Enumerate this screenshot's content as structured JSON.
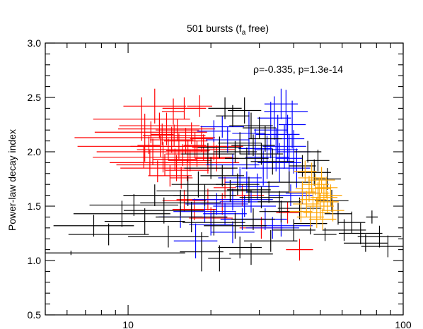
{
  "chart_data": {
    "type": "scatter",
    "title_main": "501 bursts (f",
    "title_sub": "a",
    "title_tail": " free)",
    "ylabel": "Power-law decay index",
    "xlabel": "",
    "annotation": "ρ=-0.335, p=1.3e-14",
    "x_scale": "log",
    "xlim": [
      5,
      100
    ],
    "ylim": [
      0.5,
      3.0
    ],
    "x_tick_labels": [
      "10",
      "100"
    ],
    "y_tick_labels": [
      "0.5",
      "1.0",
      "1.5",
      "2.0",
      "2.5",
      "3.0"
    ],
    "grid": false,
    "series": [
      {
        "color": "#ff0000",
        "points": [
          [
            12.5,
            2.42,
            1.3,
            0.16
          ],
          [
            11.2,
            2.3,
            1.5,
            0.2
          ],
          [
            14.6,
            2.37,
            1.1,
            0.12
          ],
          [
            16.0,
            2.4,
            1.2,
            0.1
          ],
          [
            18.2,
            2.42,
            0.9,
            0.1
          ],
          [
            11.5,
            2.13,
            1.8,
            0.22
          ],
          [
            12.1,
            2.18,
            1.6,
            0.1
          ],
          [
            13.0,
            2.24,
            1.4,
            0.12
          ],
          [
            13.8,
            2.21,
            1.5,
            0.15
          ],
          [
            14.7,
            2.15,
            1.3,
            0.1
          ],
          [
            15.1,
            2.2,
            1.2,
            0.1
          ],
          [
            16.2,
            2.1,
            1.2,
            0.12
          ],
          [
            17.0,
            2.17,
            1.0,
            0.1
          ],
          [
            13.1,
            2.05,
            2.0,
            0.1
          ],
          [
            12.3,
            2.0,
            1.6,
            0.12
          ],
          [
            11.9,
            2.06,
            1.1,
            0.08
          ],
          [
            14.0,
            2.02,
            1.3,
            0.1
          ],
          [
            15.3,
            2.05,
            1.5,
            0.12
          ],
          [
            16.5,
            2.01,
            1.2,
            0.1
          ],
          [
            17.5,
            2.06,
            1.1,
            0.12
          ],
          [
            13.4,
            1.95,
            1.8,
            0.14
          ],
          [
            12.0,
            1.9,
            1.4,
            0.12
          ],
          [
            14.8,
            1.93,
            1.2,
            0.1
          ],
          [
            15.8,
            1.97,
            1.0,
            0.1
          ],
          [
            17.8,
            1.98,
            1.3,
            0.12
          ],
          [
            13.6,
            1.88,
            1.5,
            0.1
          ],
          [
            15.0,
            1.85,
            1.6,
            0.12
          ],
          [
            16.4,
            1.83,
            1.2,
            0.1
          ],
          [
            14.2,
            1.78,
            1.2,
            0.1
          ],
          [
            12.8,
            1.82,
            1.0,
            0.1
          ],
          [
            15.6,
            1.76,
            1.1,
            0.1
          ],
          [
            14.4,
            2.11,
            1.2,
            0.12
          ],
          [
            13.3,
            2.16,
            1.1,
            0.1
          ],
          [
            11.4,
            1.95,
            1.0,
            0.1
          ],
          [
            18.8,
            2.04,
            1.1,
            0.12
          ],
          [
            16.8,
            1.92,
            1.2,
            0.1
          ],
          [
            19.5,
            1.9,
            1.3,
            0.1
          ],
          [
            21.0,
            1.94,
            1.2,
            0.12
          ],
          [
            20.5,
            2.02,
            1.2,
            0.1
          ],
          [
            18.5,
            2.12,
            1.1,
            0.12
          ],
          [
            16.0,
            1.55,
            1.2,
            0.1
          ],
          [
            19.5,
            1.56,
            1.3,
            0.1
          ],
          [
            22.0,
            1.52,
            1.2,
            0.1
          ],
          [
            17.4,
            1.47,
            1.2,
            0.1
          ],
          [
            20.0,
            1.39,
            1.2,
            0.1
          ],
          [
            22.5,
            1.67,
            1.1,
            0.1
          ],
          [
            26.0,
            1.6,
            1.2,
            0.1
          ],
          [
            30.5,
            1.3,
            1.2,
            0.1
          ],
          [
            42.0,
            1.1,
            1.12,
            0.1
          ],
          [
            38.0,
            1.44,
            1.1,
            0.1
          ]
        ]
      },
      {
        "color": "#0000ff",
        "points": [
          [
            36.0,
            2.44,
            1.15,
            0.14
          ],
          [
            37.5,
            2.37,
            1.2,
            0.2
          ],
          [
            34.0,
            2.31,
            1.15,
            0.2
          ],
          [
            33.0,
            2.2,
            1.15,
            0.26
          ],
          [
            35.0,
            2.16,
            1.2,
            0.18
          ],
          [
            38.0,
            2.12,
            1.15,
            0.22
          ],
          [
            39.5,
            2.25,
            1.12,
            0.22
          ],
          [
            37.0,
            2.05,
            1.2,
            0.2
          ],
          [
            34.5,
            2.02,
            1.2,
            0.2
          ],
          [
            32.0,
            1.95,
            1.2,
            0.2
          ],
          [
            35.5,
            1.9,
            1.2,
            0.18
          ],
          [
            38.5,
            1.94,
            1.12,
            0.22
          ],
          [
            40.0,
            2.0,
            1.15,
            0.2
          ],
          [
            41.0,
            1.85,
            1.12,
            0.18
          ],
          [
            31.0,
            1.85,
            1.2,
            0.16
          ],
          [
            29.0,
            2.03,
            1.15,
            0.18
          ],
          [
            27.5,
            2.17,
            1.15,
            0.2
          ],
          [
            22.0,
            2.23,
            1.2,
            0.1
          ],
          [
            20.5,
            2.19,
            1.15,
            0.1
          ],
          [
            23.0,
            2.11,
            1.2,
            0.12
          ],
          [
            24.0,
            1.88,
            1.25,
            0.1
          ],
          [
            25.5,
            1.76,
            1.2,
            0.1
          ],
          [
            27.0,
            1.72,
            1.2,
            0.1
          ],
          [
            29.5,
            1.68,
            1.2,
            0.12
          ],
          [
            24.0,
            1.56,
            1.4,
            0.1
          ],
          [
            21.0,
            1.52,
            1.3,
            0.1
          ],
          [
            26.5,
            1.5,
            1.3,
            0.1
          ],
          [
            28.0,
            1.54,
            1.3,
            0.1
          ],
          [
            19.0,
            1.45,
            1.3,
            0.1
          ],
          [
            22.5,
            1.43,
            1.2,
            0.1
          ],
          [
            31.5,
            1.38,
            1.2,
            0.1
          ],
          [
            33.5,
            1.3,
            1.25,
            0.1
          ],
          [
            36.0,
            1.32,
            1.3,
            0.1
          ],
          [
            17.6,
            1.18,
            1.2,
            0.16
          ],
          [
            20.0,
            1.33,
            1.2,
            0.1
          ],
          [
            24.0,
            1.26,
            1.2,
            0.1
          ],
          [
            39.0,
            1.6,
            1.2,
            0.1
          ],
          [
            43.0,
            1.62,
            1.15,
            0.1
          ],
          [
            15.5,
            1.4,
            1.2,
            0.1
          ],
          [
            26.0,
            1.38,
            1.2,
            0.1
          ]
        ]
      },
      {
        "color": "#000000",
        "points": [
          [
            22.5,
            2.4,
            1.15,
            0.1
          ],
          [
            26.5,
            2.38,
            1.15,
            0.12
          ],
          [
            24.0,
            2.33,
            1.15,
            0.1
          ],
          [
            28.0,
            2.24,
            1.2,
            0.12
          ],
          [
            30.0,
            2.22,
            1.15,
            0.1
          ],
          [
            25.5,
            2.08,
            1.2,
            0.1
          ],
          [
            28.5,
            2.06,
            1.2,
            0.1
          ],
          [
            31.5,
            2.12,
            1.15,
            0.12
          ],
          [
            30.5,
            1.98,
            1.2,
            0.1
          ],
          [
            27.0,
            1.94,
            1.2,
            0.1
          ],
          [
            24.5,
            2.0,
            1.2,
            0.1
          ],
          [
            21.5,
            2.04,
            1.2,
            0.1
          ],
          [
            19.5,
            1.98,
            1.25,
            0.1
          ],
          [
            33.5,
            1.91,
            1.2,
            0.12
          ],
          [
            45.0,
            2.0,
            1.12,
            0.1
          ],
          [
            49.0,
            1.92,
            1.1,
            0.1
          ],
          [
            43.0,
            1.87,
            1.12,
            0.1
          ],
          [
            47.5,
            1.81,
            1.15,
            0.12
          ],
          [
            53.0,
            1.75,
            1.12,
            0.1
          ],
          [
            20.0,
            1.85,
            1.25,
            0.1
          ],
          [
            22.0,
            1.78,
            1.2,
            0.1
          ],
          [
            18.0,
            1.7,
            1.25,
            0.12
          ],
          [
            16.5,
            1.64,
            1.3,
            0.14
          ],
          [
            19.0,
            1.6,
            1.3,
            0.1
          ],
          [
            23.5,
            1.64,
            1.2,
            0.1
          ],
          [
            25.0,
            1.7,
            1.2,
            0.1
          ],
          [
            27.5,
            1.65,
            1.2,
            0.12
          ],
          [
            30.5,
            1.58,
            1.2,
            0.1
          ],
          [
            32.5,
            1.63,
            1.2,
            0.1
          ],
          [
            35.5,
            1.54,
            1.2,
            0.1
          ],
          [
            15.5,
            1.53,
            1.4,
            0.12
          ],
          [
            13.5,
            1.46,
            1.4,
            0.12
          ],
          [
            12.5,
            1.6,
            1.3,
            0.1
          ],
          [
            10.5,
            1.51,
            1.45,
            0.1
          ],
          [
            9.5,
            1.43,
            1.5,
            0.12
          ],
          [
            11.5,
            1.36,
            1.4,
            0.12
          ],
          [
            17.0,
            1.4,
            1.35,
            0.14
          ],
          [
            20.5,
            1.35,
            1.3,
            0.12
          ],
          [
            24.5,
            1.32,
            1.3,
            0.12
          ],
          [
            28.5,
            1.38,
            1.2,
            0.1
          ],
          [
            36.0,
            1.45,
            1.2,
            0.1
          ],
          [
            42.0,
            1.48,
            1.2,
            0.1
          ],
          [
            55.0,
            1.55,
            1.15,
            0.1
          ],
          [
            58.0,
            1.43,
            1.12,
            0.1
          ],
          [
            65.0,
            1.35,
            1.12,
            0.1
          ],
          [
            61.0,
            1.28,
            1.2,
            0.1
          ],
          [
            70.0,
            1.25,
            1.2,
            0.1
          ],
          [
            77.0,
            1.4,
            1.05,
            0.06
          ],
          [
            82.0,
            1.22,
            1.2,
            0.1
          ],
          [
            88.0,
            1.13,
            1.25,
            0.1
          ],
          [
            73.0,
            1.16,
            1.2,
            0.08
          ],
          [
            18.5,
            1.08,
            1.2,
            0.18
          ],
          [
            21.5,
            1.02,
            1.1,
            0.12
          ],
          [
            25.5,
            1.12,
            1.2,
            0.1
          ],
          [
            28.0,
            1.06,
            1.2,
            0.1
          ],
          [
            33.0,
            1.18,
            1.25,
            0.1
          ],
          [
            8.5,
            1.24,
            1.4,
            0.1
          ],
          [
            7.5,
            1.32,
            1.4,
            0.1
          ],
          [
            14.0,
            1.22,
            1.4,
            0.1
          ],
          [
            6.2,
            1.07,
            2.6,
            0.02
          ],
          [
            38.5,
            1.72,
            1.2,
            0.1
          ],
          [
            40.0,
            1.28,
            1.2,
            0.1
          ],
          [
            52.0,
            1.24,
            1.1,
            0.06
          ],
          [
            46.0,
            1.34,
            1.15,
            0.1
          ]
        ]
      },
      {
        "color": "#ffa500",
        "points": [
          [
            44.0,
            1.82,
            1.1,
            0.1
          ],
          [
            46.5,
            1.76,
            1.12,
            0.14
          ],
          [
            48.0,
            1.7,
            1.12,
            0.1
          ],
          [
            50.5,
            1.74,
            1.12,
            0.12
          ],
          [
            52.5,
            1.67,
            1.1,
            0.1
          ],
          [
            45.5,
            1.66,
            1.12,
            0.12
          ],
          [
            43.0,
            1.63,
            1.12,
            0.1
          ],
          [
            49.0,
            1.62,
            1.1,
            0.1
          ],
          [
            51.5,
            1.58,
            1.12,
            0.12
          ],
          [
            54.5,
            1.6,
            1.1,
            0.1
          ],
          [
            47.0,
            1.56,
            1.12,
            0.1
          ],
          [
            44.5,
            1.52,
            1.12,
            0.12
          ],
          [
            50.0,
            1.5,
            1.12,
            0.12
          ],
          [
            53.0,
            1.54,
            1.1,
            0.1
          ],
          [
            48.5,
            1.44,
            1.12,
            0.14
          ],
          [
            46.0,
            1.4,
            1.12,
            0.1
          ],
          [
            42.5,
            1.45,
            1.1,
            0.1
          ],
          [
            55.5,
            1.46,
            1.1,
            0.1
          ],
          [
            51.0,
            1.38,
            1.12,
            0.1
          ],
          [
            49.5,
            1.66,
            1.1,
            0.1
          ]
        ]
      }
    ]
  }
}
